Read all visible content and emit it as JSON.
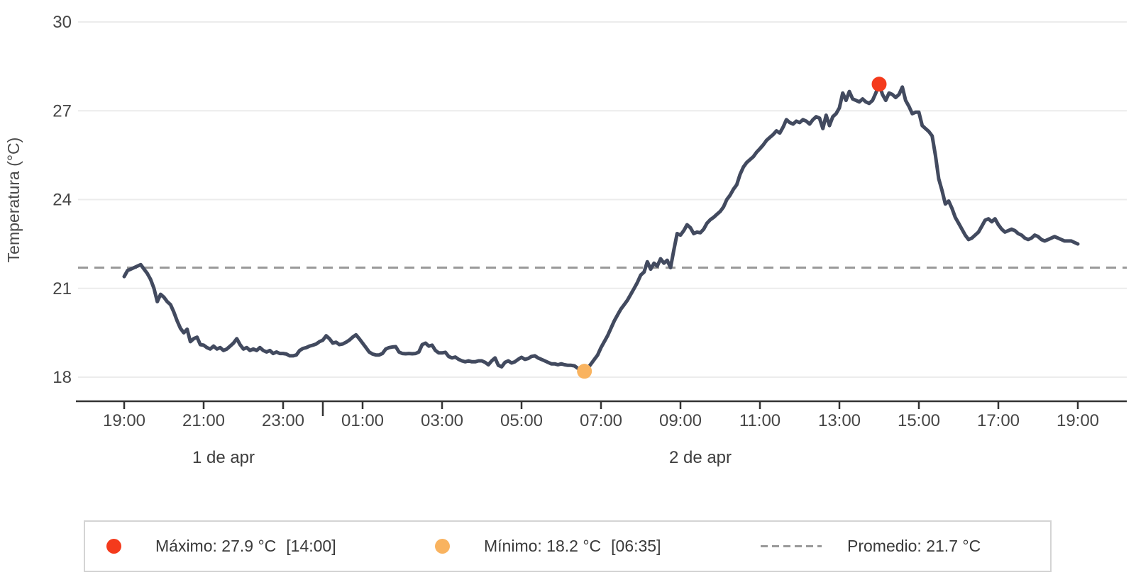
{
  "chart_data": {
    "type": "line",
    "title": "",
    "xlabel": "",
    "ylabel": "Temperatura (°C)",
    "ylim": [
      18,
      30
    ],
    "y_ticks": [
      18,
      21,
      24,
      27,
      30
    ],
    "x_ticks": [
      {
        "offset_min": 0,
        "label": "19:00"
      },
      {
        "offset_min": 120,
        "label": "21:00"
      },
      {
        "offset_min": 240,
        "label": "23:00"
      },
      {
        "offset_min": 360,
        "label": "01:00"
      },
      {
        "offset_min": 480,
        "label": "03:00"
      },
      {
        "offset_min": 600,
        "label": "05:00"
      },
      {
        "offset_min": 720,
        "label": "07:00"
      },
      {
        "offset_min": 840,
        "label": "09:00"
      },
      {
        "offset_min": 960,
        "label": "11:00"
      },
      {
        "offset_min": 1080,
        "label": "13:00"
      },
      {
        "offset_min": 1200,
        "label": "15:00"
      },
      {
        "offset_min": 1320,
        "label": "17:00"
      },
      {
        "offset_min": 1440,
        "label": "19:00"
      }
    ],
    "day_separator_offset_min": 300,
    "day_labels": [
      {
        "label": "1 de apr",
        "center_offset_min": 150
      },
      {
        "label": "2 de apr",
        "center_offset_min": 870
      }
    ],
    "grid": true,
    "legend_position": "bottom",
    "colors": {
      "line": "#424a5f",
      "grid": "#ececec",
      "axis": "#333333",
      "tick_text": "#464646",
      "average_line": "#999999",
      "max_marker": "#f43a1c",
      "min_marker": "#f9b35f"
    },
    "average": {
      "value": 21.7,
      "label": "Promedio: 21.7 °C"
    },
    "max_point": {
      "offset_min": 1140,
      "value": 27.9,
      "time_label": "14:00"
    },
    "min_point": {
      "offset_min": 695,
      "value": 18.2,
      "time_label": "06:35"
    },
    "series": [
      {
        "name": "Temperatura",
        "points": [
          [
            0,
            21.4
          ],
          [
            5,
            21.6
          ],
          [
            10,
            21.65
          ],
          [
            15,
            21.7
          ],
          [
            20,
            21.75
          ],
          [
            25,
            21.8
          ],
          [
            30,
            21.65
          ],
          [
            35,
            21.5
          ],
          [
            40,
            21.3
          ],
          [
            45,
            21.0
          ],
          [
            50,
            20.55
          ],
          [
            55,
            20.8
          ],
          [
            60,
            20.7
          ],
          [
            65,
            20.55
          ],
          [
            70,
            20.45
          ],
          [
            75,
            20.2
          ],
          [
            80,
            19.9
          ],
          [
            85,
            19.65
          ],
          [
            90,
            19.5
          ],
          [
            95,
            19.62
          ],
          [
            100,
            19.2
          ],
          [
            105,
            19.3
          ],
          [
            110,
            19.35
          ],
          [
            115,
            19.1
          ],
          [
            120,
            19.08
          ],
          [
            125,
            19.0
          ],
          [
            130,
            18.95
          ],
          [
            135,
            19.05
          ],
          [
            140,
            18.95
          ],
          [
            145,
            19.0
          ],
          [
            150,
            18.9
          ],
          [
            155,
            18.95
          ],
          [
            160,
            19.05
          ],
          [
            165,
            19.15
          ],
          [
            170,
            19.3
          ],
          [
            175,
            19.1
          ],
          [
            180,
            18.95
          ],
          [
            185,
            19.0
          ],
          [
            190,
            18.9
          ],
          [
            195,
            18.95
          ],
          [
            200,
            18.9
          ],
          [
            205,
            19.0
          ],
          [
            210,
            18.9
          ],
          [
            215,
            18.85
          ],
          [
            220,
            18.9
          ],
          [
            225,
            18.8
          ],
          [
            230,
            18.85
          ],
          [
            235,
            18.8
          ],
          [
            240,
            18.8
          ],
          [
            245,
            18.78
          ],
          [
            250,
            18.72
          ],
          [
            255,
            18.72
          ],
          [
            260,
            18.75
          ],
          [
            265,
            18.9
          ],
          [
            270,
            18.97
          ],
          [
            275,
            19.0
          ],
          [
            280,
            19.05
          ],
          [
            285,
            19.08
          ],
          [
            290,
            19.12
          ],
          [
            295,
            19.2
          ],
          [
            300,
            19.25
          ],
          [
            305,
            19.4
          ],
          [
            310,
            19.3
          ],
          [
            315,
            19.15
          ],
          [
            320,
            19.18
          ],
          [
            325,
            19.1
          ],
          [
            330,
            19.12
          ],
          [
            335,
            19.18
          ],
          [
            340,
            19.25
          ],
          [
            345,
            19.35
          ],
          [
            350,
            19.43
          ],
          [
            355,
            19.3
          ],
          [
            360,
            19.15
          ],
          [
            365,
            19.0
          ],
          [
            370,
            18.85
          ],
          [
            375,
            18.78
          ],
          [
            380,
            18.75
          ],
          [
            385,
            18.75
          ],
          [
            390,
            18.8
          ],
          [
            395,
            18.95
          ],
          [
            400,
            19.0
          ],
          [
            405,
            19.02
          ],
          [
            410,
            19.03
          ],
          [
            415,
            18.85
          ],
          [
            420,
            18.8
          ],
          [
            425,
            18.79
          ],
          [
            430,
            18.8
          ],
          [
            435,
            18.79
          ],
          [
            440,
            18.8
          ],
          [
            445,
            18.85
          ],
          [
            450,
            19.1
          ],
          [
            455,
            19.15
          ],
          [
            460,
            19.05
          ],
          [
            465,
            19.08
          ],
          [
            470,
            18.9
          ],
          [
            475,
            18.82
          ],
          [
            480,
            18.82
          ],
          [
            485,
            18.84
          ],
          [
            490,
            18.7
          ],
          [
            495,
            18.65
          ],
          [
            500,
            18.68
          ],
          [
            505,
            18.6
          ],
          [
            510,
            18.55
          ],
          [
            515,
            18.52
          ],
          [
            520,
            18.55
          ],
          [
            525,
            18.52
          ],
          [
            530,
            18.52
          ],
          [
            535,
            18.55
          ],
          [
            540,
            18.55
          ],
          [
            545,
            18.5
          ],
          [
            550,
            18.42
          ],
          [
            555,
            18.55
          ],
          [
            560,
            18.65
          ],
          [
            565,
            18.4
          ],
          [
            570,
            18.35
          ],
          [
            575,
            18.5
          ],
          [
            580,
            18.55
          ],
          [
            585,
            18.48
          ],
          [
            590,
            18.52
          ],
          [
            595,
            18.6
          ],
          [
            600,
            18.67
          ],
          [
            605,
            18.6
          ],
          [
            610,
            18.63
          ],
          [
            615,
            18.7
          ],
          [
            620,
            18.72
          ],
          [
            625,
            18.65
          ],
          [
            630,
            18.6
          ],
          [
            635,
            18.55
          ],
          [
            640,
            18.5
          ],
          [
            645,
            18.45
          ],
          [
            650,
            18.45
          ],
          [
            655,
            18.42
          ],
          [
            660,
            18.45
          ],
          [
            665,
            18.42
          ],
          [
            670,
            18.4
          ],
          [
            675,
            18.4
          ],
          [
            680,
            18.38
          ],
          [
            685,
            18.3
          ],
          [
            690,
            18.25
          ],
          [
            695,
            18.2
          ],
          [
            700,
            18.3
          ],
          [
            705,
            18.45
          ],
          [
            710,
            18.6
          ],
          [
            715,
            18.75
          ],
          [
            720,
            19.0
          ],
          [
            725,
            19.2
          ],
          [
            730,
            19.4
          ],
          [
            735,
            19.65
          ],
          [
            740,
            19.9
          ],
          [
            745,
            20.1
          ],
          [
            750,
            20.3
          ],
          [
            755,
            20.45
          ],
          [
            760,
            20.6
          ],
          [
            765,
            20.8
          ],
          [
            770,
            21.0
          ],
          [
            775,
            21.2
          ],
          [
            780,
            21.45
          ],
          [
            785,
            21.55
          ],
          [
            790,
            21.9
          ],
          [
            795,
            21.65
          ],
          [
            800,
            21.85
          ],
          [
            805,
            21.75
          ],
          [
            810,
            22.0
          ],
          [
            815,
            21.85
          ],
          [
            820,
            21.95
          ],
          [
            825,
            21.7
          ],
          [
            830,
            22.3
          ],
          [
            835,
            22.85
          ],
          [
            840,
            22.8
          ],
          [
            845,
            22.95
          ],
          [
            850,
            23.15
          ],
          [
            855,
            23.05
          ],
          [
            860,
            22.85
          ],
          [
            865,
            22.9
          ],
          [
            870,
            22.88
          ],
          [
            875,
            23.0
          ],
          [
            880,
            23.2
          ],
          [
            885,
            23.32
          ],
          [
            890,
            23.4
          ],
          [
            895,
            23.5
          ],
          [
            900,
            23.6
          ],
          [
            905,
            23.75
          ],
          [
            910,
            24.0
          ],
          [
            915,
            24.15
          ],
          [
            920,
            24.35
          ],
          [
            925,
            24.5
          ],
          [
            930,
            24.85
          ],
          [
            935,
            25.1
          ],
          [
            940,
            25.25
          ],
          [
            945,
            25.35
          ],
          [
            950,
            25.45
          ],
          [
            955,
            25.6
          ],
          [
            960,
            25.72
          ],
          [
            965,
            25.85
          ],
          [
            970,
            26.0
          ],
          [
            975,
            26.1
          ],
          [
            980,
            26.2
          ],
          [
            985,
            26.32
          ],
          [
            990,
            26.25
          ],
          [
            995,
            26.45
          ],
          [
            1000,
            26.7
          ],
          [
            1005,
            26.6
          ],
          [
            1010,
            26.55
          ],
          [
            1015,
            26.65
          ],
          [
            1020,
            26.6
          ],
          [
            1025,
            26.7
          ],
          [
            1030,
            26.65
          ],
          [
            1035,
            26.55
          ],
          [
            1040,
            26.7
          ],
          [
            1045,
            26.8
          ],
          [
            1050,
            26.75
          ],
          [
            1055,
            26.4
          ],
          [
            1060,
            26.85
          ],
          [
            1065,
            26.5
          ],
          [
            1070,
            26.8
          ],
          [
            1075,
            26.9
          ],
          [
            1080,
            27.1
          ],
          [
            1085,
            27.6
          ],
          [
            1090,
            27.35
          ],
          [
            1095,
            27.65
          ],
          [
            1100,
            27.4
          ],
          [
            1105,
            27.35
          ],
          [
            1110,
            27.3
          ],
          [
            1115,
            27.4
          ],
          [
            1120,
            27.3
          ],
          [
            1125,
            27.25
          ],
          [
            1130,
            27.35
          ],
          [
            1135,
            27.6
          ],
          [
            1140,
            27.9
          ],
          [
            1145,
            27.55
          ],
          [
            1150,
            27.35
          ],
          [
            1155,
            27.6
          ],
          [
            1160,
            27.55
          ],
          [
            1165,
            27.45
          ],
          [
            1170,
            27.55
          ],
          [
            1175,
            27.8
          ],
          [
            1180,
            27.35
          ],
          [
            1185,
            27.15
          ],
          [
            1190,
            26.9
          ],
          [
            1195,
            26.95
          ],
          [
            1200,
            26.95
          ],
          [
            1205,
            26.5
          ],
          [
            1210,
            26.4
          ],
          [
            1215,
            26.3
          ],
          [
            1220,
            26.15
          ],
          [
            1225,
            25.5
          ],
          [
            1230,
            24.7
          ],
          [
            1235,
            24.3
          ],
          [
            1240,
            23.85
          ],
          [
            1245,
            23.95
          ],
          [
            1250,
            23.7
          ],
          [
            1255,
            23.4
          ],
          [
            1260,
            23.2
          ],
          [
            1265,
            23.0
          ],
          [
            1270,
            22.8
          ],
          [
            1275,
            22.65
          ],
          [
            1280,
            22.7
          ],
          [
            1285,
            22.8
          ],
          [
            1290,
            22.9
          ],
          [
            1295,
            23.1
          ],
          [
            1300,
            23.3
          ],
          [
            1305,
            23.35
          ],
          [
            1310,
            23.25
          ],
          [
            1315,
            23.35
          ],
          [
            1320,
            23.15
          ],
          [
            1325,
            23.0
          ],
          [
            1330,
            22.9
          ],
          [
            1335,
            22.95
          ],
          [
            1340,
            23.0
          ],
          [
            1345,
            22.95
          ],
          [
            1350,
            22.85
          ],
          [
            1355,
            22.8
          ],
          [
            1360,
            22.7
          ],
          [
            1365,
            22.65
          ],
          [
            1370,
            22.7
          ],
          [
            1375,
            22.8
          ],
          [
            1380,
            22.75
          ],
          [
            1385,
            22.65
          ],
          [
            1390,
            22.6
          ],
          [
            1395,
            22.65
          ],
          [
            1400,
            22.7
          ],
          [
            1405,
            22.75
          ],
          [
            1410,
            22.7
          ],
          [
            1415,
            22.65
          ],
          [
            1420,
            22.6
          ],
          [
            1425,
            22.6
          ],
          [
            1430,
            22.6
          ],
          [
            1435,
            22.55
          ],
          [
            1440,
            22.5
          ]
        ]
      }
    ]
  },
  "legend": {
    "items": [
      {
        "label": "Máximo: 27.9 °C",
        "time": "[14:00]"
      },
      {
        "label": "Mínimo: 18.2 °C",
        "time": "[06:35]"
      },
      {
        "label": "Promedio: 21.7 °C",
        "time": ""
      }
    ]
  }
}
